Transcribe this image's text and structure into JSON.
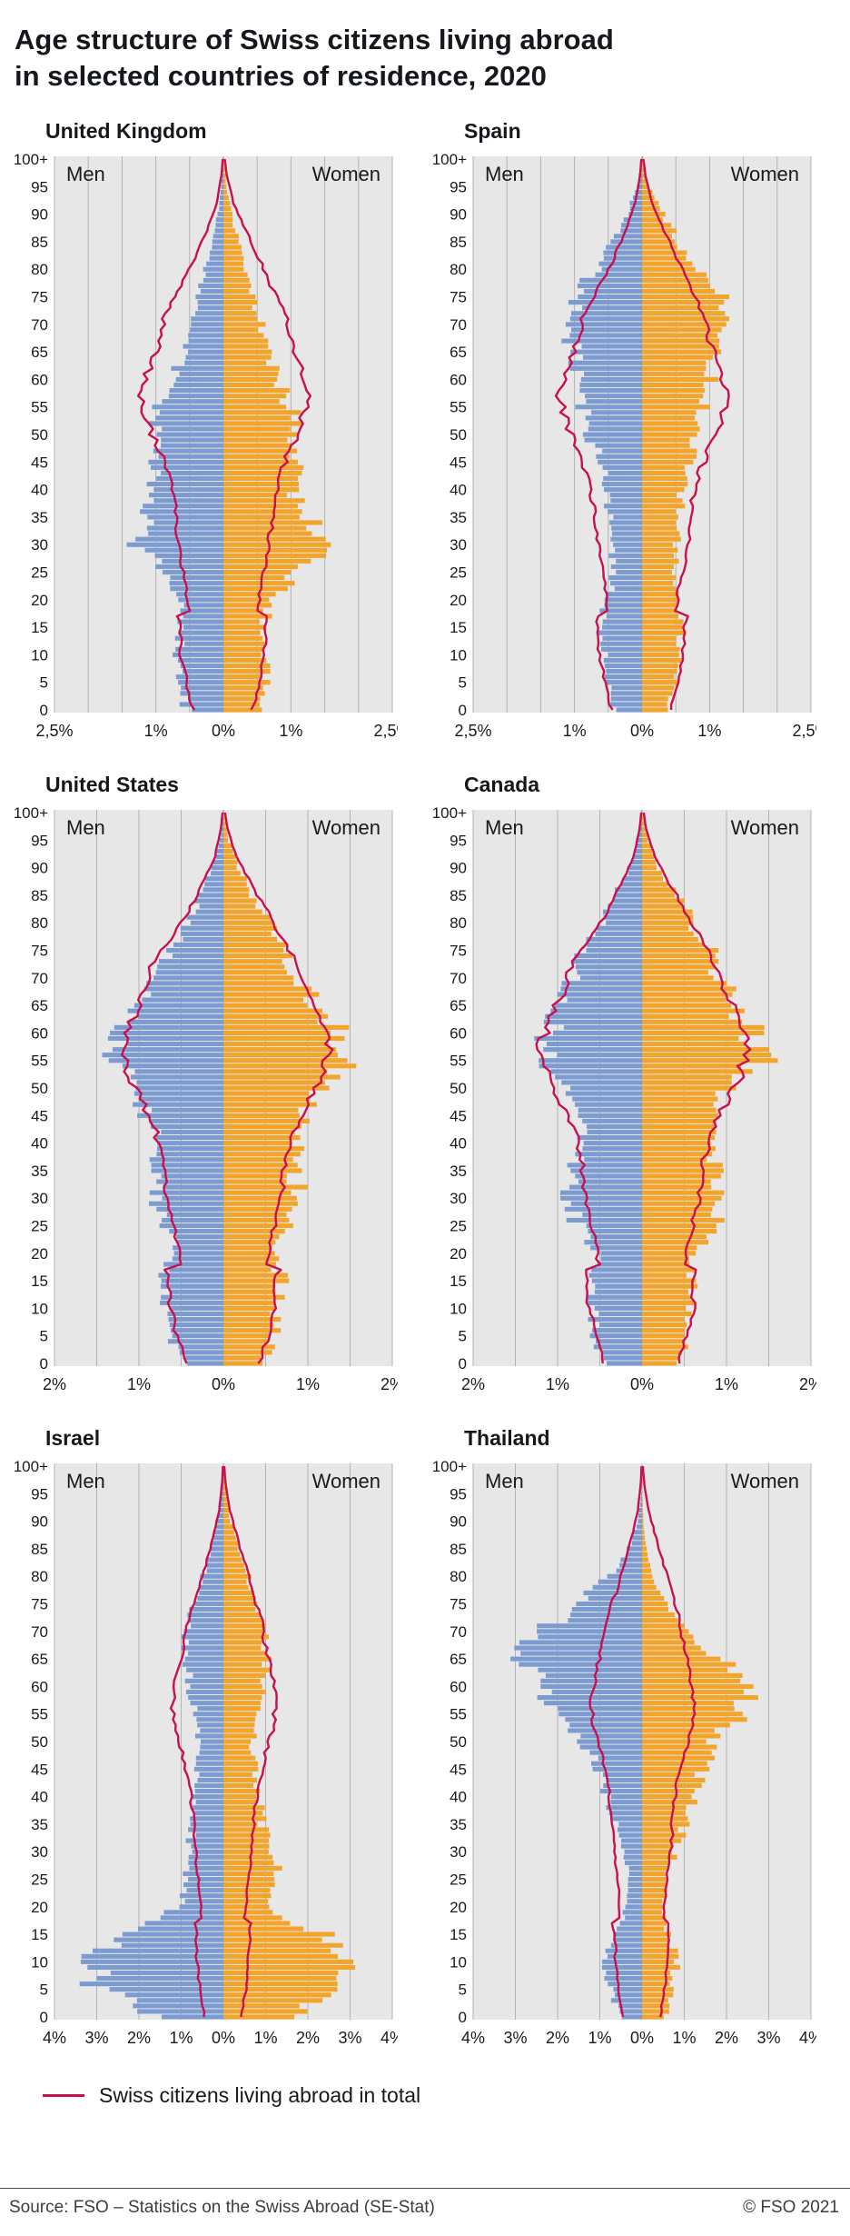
{
  "page": {
    "title_line1": "Age structure of Swiss citizens living abroad",
    "title_line2": "in selected countries of residence, 2020",
    "legend_label": "Swiss citizens living abroad in total",
    "source": "Source: FSO – Statistics on the Swiss Abroad (SE-Stat)",
    "copyright": "© FSO 2021"
  },
  "colors": {
    "men_bar": "#7c9bd1",
    "women_bar": "#f2a42b",
    "total_line": "#c8104e",
    "plot_bg": "#e7e7e7",
    "gridline": "#b3b3b3",
    "axis_text": "#1a1a1a"
  },
  "labels": {
    "men": "Men",
    "women": "Women",
    "age_ticks": [
      "100+",
      "95",
      "90",
      "85",
      "80",
      "75",
      "70",
      "65",
      "60",
      "55",
      "50",
      "45",
      "40",
      "35",
      "30",
      "25",
      "20",
      "15",
      "10",
      "5",
      "0"
    ]
  },
  "age_bins": [
    0,
    5,
    10,
    15,
    20,
    25,
    30,
    35,
    40,
    45,
    50,
    55,
    60,
    65,
    70,
    75,
    80,
    85,
    90,
    95,
    100
  ],
  "chart_data": [
    {
      "type": "bar",
      "subtype": "population-pyramid",
      "country": "United Kingdom",
      "unit": "% of Swiss citizens in country, per year of age",
      "axis_max": 2.5,
      "grid_step": 0.5,
      "x_ticks": [
        {
          "v": -2.5,
          "label": "2,5%"
        },
        {
          "v": -1,
          "label": "1%"
        },
        {
          "v": 0,
          "label": "0%"
        },
        {
          "v": 1,
          "label": "1%"
        },
        {
          "v": 2.5,
          "label": "2,5%"
        }
      ],
      "men": [
        0.55,
        0.68,
        0.66,
        0.6,
        0.62,
        0.95,
        1.25,
        1.1,
        1.0,
        1.02,
        1.05,
        0.95,
        0.78,
        0.6,
        0.5,
        0.4,
        0.28,
        0.17,
        0.08,
        0.03,
        0.01
      ],
      "women": [
        0.52,
        0.65,
        0.63,
        0.58,
        0.7,
        1.15,
        1.45,
        1.25,
        1.05,
        1.05,
        1.08,
        0.98,
        0.8,
        0.65,
        0.55,
        0.45,
        0.33,
        0.22,
        0.12,
        0.04,
        0.01
      ]
    },
    {
      "type": "bar",
      "subtype": "population-pyramid",
      "country": "Spain",
      "unit": "% of Swiss citizens in country, per year of age",
      "axis_max": 2.5,
      "grid_step": 0.5,
      "x_ticks": [
        {
          "v": -2.5,
          "label": "2,5%"
        },
        {
          "v": -1,
          "label": "1%"
        },
        {
          "v": 0,
          "label": "0%"
        },
        {
          "v": 1,
          "label": "1%"
        },
        {
          "v": 2.5,
          "label": "2,5%"
        }
      ],
      "men": [
        0.42,
        0.5,
        0.58,
        0.62,
        0.5,
        0.42,
        0.45,
        0.48,
        0.52,
        0.6,
        0.78,
        0.88,
        0.9,
        1.0,
        1.1,
        1.0,
        0.68,
        0.45,
        0.22,
        0.07,
        0.01
      ],
      "women": [
        0.4,
        0.48,
        0.55,
        0.6,
        0.52,
        0.48,
        0.52,
        0.55,
        0.6,
        0.68,
        0.85,
        0.95,
        1.0,
        1.1,
        1.25,
        1.15,
        0.85,
        0.55,
        0.3,
        0.1,
        0.02
      ]
    },
    {
      "type": "bar",
      "subtype": "population-pyramid",
      "country": "United States",
      "unit": "% of Swiss citizens in country, per year of age",
      "axis_max": 2.0,
      "grid_step": 0.5,
      "x_ticks": [
        {
          "v": -2,
          "label": "2%"
        },
        {
          "v": -1,
          "label": "1%"
        },
        {
          "v": 0,
          "label": "0%"
        },
        {
          "v": 1,
          "label": "1%"
        },
        {
          "v": 2,
          "label": "2%"
        }
      ],
      "men": [
        0.5,
        0.6,
        0.66,
        0.7,
        0.58,
        0.68,
        0.85,
        0.8,
        0.8,
        0.9,
        1.0,
        1.3,
        1.2,
        1.0,
        0.8,
        0.6,
        0.42,
        0.27,
        0.13,
        0.04,
        0.01
      ],
      "women": [
        0.48,
        0.58,
        0.64,
        0.68,
        0.6,
        0.75,
        0.9,
        0.85,
        0.85,
        0.95,
        1.1,
        1.45,
        1.35,
        1.1,
        0.9,
        0.7,
        0.52,
        0.35,
        0.18,
        0.06,
        0.01
      ]
    },
    {
      "type": "bar",
      "subtype": "population-pyramid",
      "country": "Canada",
      "unit": "% of Swiss citizens in country, per year of age",
      "axis_max": 2.0,
      "grid_step": 0.5,
      "x_ticks": [
        {
          "v": -2,
          "label": "2%"
        },
        {
          "v": -1,
          "label": "1%"
        },
        {
          "v": 0,
          "label": "0%"
        },
        {
          "v": 1,
          "label": "1%"
        },
        {
          "v": 2,
          "label": "2%"
        }
      ],
      "men": [
        0.45,
        0.55,
        0.6,
        0.65,
        0.55,
        0.75,
        0.9,
        0.8,
        0.72,
        0.78,
        0.9,
        1.15,
        1.1,
        0.95,
        0.85,
        0.68,
        0.5,
        0.32,
        0.15,
        0.05,
        0.01
      ],
      "women": [
        0.43,
        0.53,
        0.58,
        0.62,
        0.58,
        0.85,
        1.0,
        0.88,
        0.8,
        0.85,
        1.0,
        1.4,
        1.3,
        1.1,
        0.95,
        0.8,
        0.6,
        0.4,
        0.2,
        0.07,
        0.01
      ]
    },
    {
      "type": "bar",
      "subtype": "population-pyramid",
      "country": "Israel",
      "unit": "% of Swiss citizens in country, per year of age",
      "axis_max": 4.0,
      "grid_step": 1.0,
      "x_ticks": [
        {
          "v": -4,
          "label": "4%"
        },
        {
          "v": -3,
          "label": "3%"
        },
        {
          "v": -2,
          "label": "2%"
        },
        {
          "v": -1,
          "label": "1%"
        },
        {
          "v": 0,
          "label": "0%"
        },
        {
          "v": 1,
          "label": "1%"
        },
        {
          "v": 2,
          "label": "2%"
        },
        {
          "v": 3,
          "label": "3%"
        },
        {
          "v": 4,
          "label": "4%"
        }
      ],
      "men": [
        1.6,
        2.9,
        3.3,
        2.5,
        0.95,
        0.85,
        0.8,
        0.75,
        0.7,
        0.62,
        0.6,
        0.7,
        0.8,
        0.9,
        0.9,
        0.72,
        0.5,
        0.3,
        0.14,
        0.04,
        0.01
      ],
      "women": [
        1.5,
        2.7,
        3.05,
        2.35,
        1.05,
        1.3,
        1.1,
        0.95,
        0.85,
        0.72,
        0.7,
        0.8,
        0.9,
        1.0,
        1.0,
        0.82,
        0.6,
        0.38,
        0.18,
        0.06,
        0.01
      ]
    },
    {
      "type": "bar",
      "subtype": "population-pyramid",
      "country": "Thailand",
      "unit": "% of Swiss citizens in country, per year of age",
      "axis_max": 4.0,
      "grid_step": 1.0,
      "x_ticks": [
        {
          "v": -4,
          "label": "4%"
        },
        {
          "v": -3,
          "label": "3%"
        },
        {
          "v": -2,
          "label": "2%"
        },
        {
          "v": -1,
          "label": "1%"
        },
        {
          "v": 0,
          "label": "0%"
        },
        {
          "v": 1,
          "label": "1%"
        },
        {
          "v": 2,
          "label": "2%"
        },
        {
          "v": 3,
          "label": "3%"
        },
        {
          "v": 4,
          "label": "4%"
        }
      ],
      "men": [
        0.55,
        0.75,
        0.85,
        0.65,
        0.35,
        0.3,
        0.4,
        0.6,
        0.85,
        1.05,
        1.4,
        2.0,
        2.6,
        2.8,
        2.4,
        1.55,
        0.75,
        0.32,
        0.1,
        0.02,
        0.0
      ],
      "women": [
        0.52,
        0.72,
        0.82,
        0.62,
        0.45,
        0.6,
        0.8,
        1.0,
        1.2,
        1.4,
        1.7,
        2.3,
        2.5,
        1.8,
        1.05,
        0.55,
        0.25,
        0.1,
        0.03,
        0.01,
        0.0
      ]
    }
  ],
  "total_line": {
    "name": "Swiss citizens living abroad in total",
    "ages": [
      0,
      5,
      10,
      15,
      17,
      18,
      22,
      27,
      32,
      37,
      42,
      47,
      52,
      57,
      62,
      67,
      72,
      77,
      82,
      87,
      92,
      97,
      100
    ],
    "men": [
      0.45,
      0.55,
      0.63,
      0.64,
      0.68,
      0.52,
      0.55,
      0.62,
      0.68,
      0.72,
      0.8,
      0.95,
      1.12,
      1.22,
      1.1,
      0.95,
      0.85,
      0.62,
      0.42,
      0.25,
      0.1,
      0.03,
      0.01
    ],
    "women": [
      0.43,
      0.53,
      0.6,
      0.62,
      0.65,
      0.5,
      0.55,
      0.63,
      0.7,
      0.73,
      0.82,
      0.98,
      1.15,
      1.25,
      1.15,
      1.0,
      0.9,
      0.7,
      0.52,
      0.33,
      0.15,
      0.05,
      0.02
    ]
  }
}
